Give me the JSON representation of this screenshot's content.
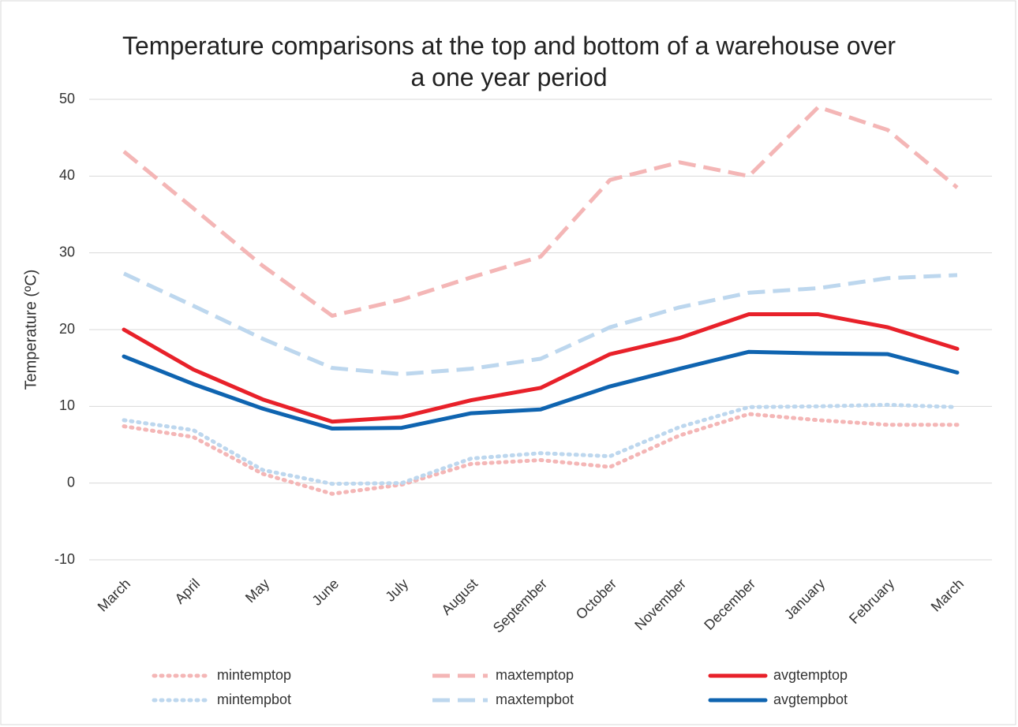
{
  "chart_data": {
    "type": "line",
    "title": "Temperature comparisons at the top and bottom of a warehouse over a one year period",
    "y_label": "Temperature (ºC)",
    "categories": [
      "March",
      "April",
      "May",
      "June",
      "July",
      "August",
      "September",
      "October",
      "November",
      "December",
      "January",
      "February",
      "March"
    ],
    "ylim": [
      -10,
      50
    ],
    "yticks": [
      -10,
      0,
      10,
      20,
      30,
      40,
      50
    ],
    "grid": true,
    "series": [
      {
        "name": "mintemptop",
        "color": "#f4b6b6",
        "dash": "dotted",
        "values": [
          7.4,
          6.0,
          1.2,
          -1.4,
          -0.2,
          2.5,
          3.0,
          2.1,
          6.2,
          9.0,
          8.2,
          7.6,
          7.6
        ]
      },
      {
        "name": "maxtemptop",
        "color": "#f4b6b6",
        "dash": "dashed",
        "values": [
          43.2,
          35.8,
          28.3,
          21.8,
          23.9,
          26.8,
          29.5,
          39.5,
          41.8,
          40.0,
          49.0,
          46.0,
          38.5
        ]
      },
      {
        "name": "avgtemptop",
        "color": "#e8212a",
        "dash": "solid",
        "values": [
          20.0,
          14.8,
          10.9,
          8.0,
          8.6,
          10.8,
          12.4,
          16.8,
          18.9,
          22.0,
          22.0,
          20.3,
          17.5
        ]
      },
      {
        "name": "mintempbot",
        "color": "#bdd7ee",
        "dash": "dotted",
        "values": [
          8.2,
          6.9,
          1.7,
          -0.1,
          0.0,
          3.2,
          3.9,
          3.5,
          7.3,
          9.9,
          10.0,
          10.2,
          9.9
        ]
      },
      {
        "name": "maxtempbot",
        "color": "#bdd7ee",
        "dash": "dashed",
        "values": [
          27.3,
          23.1,
          18.8,
          15.0,
          14.2,
          14.9,
          16.2,
          20.3,
          22.9,
          24.8,
          25.4,
          26.7,
          27.1
        ]
      },
      {
        "name": "avgtempbot",
        "color": "#0f64b0",
        "dash": "solid",
        "values": [
          16.5,
          12.9,
          9.7,
          7.1,
          7.2,
          9.1,
          9.6,
          12.6,
          14.9,
          17.1,
          16.9,
          16.8,
          14.4
        ]
      }
    ]
  }
}
